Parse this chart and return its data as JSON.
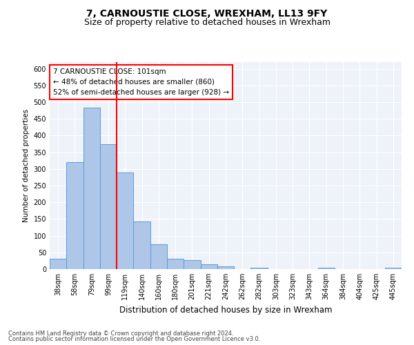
{
  "title1": "7, CARNOUSTIE CLOSE, WREXHAM, LL13 9FY",
  "title2": "Size of property relative to detached houses in Wrexham",
  "xlabel": "Distribution of detached houses by size in Wrexham",
  "ylabel": "Number of detached properties",
  "categories": [
    "38sqm",
    "58sqm",
    "79sqm",
    "99sqm",
    "119sqm",
    "140sqm",
    "160sqm",
    "180sqm",
    "201sqm",
    "221sqm",
    "242sqm",
    "262sqm",
    "282sqm",
    "303sqm",
    "323sqm",
    "343sqm",
    "364sqm",
    "384sqm",
    "404sqm",
    "425sqm",
    "445sqm"
  ],
  "values": [
    30,
    320,
    483,
    375,
    290,
    143,
    75,
    30,
    27,
    15,
    8,
    0,
    5,
    0,
    0,
    0,
    4,
    0,
    0,
    0,
    5
  ],
  "bar_color": "#aec6e8",
  "bar_edge_color": "#5b9bd5",
  "annotation_text": "7 CARNOUSTIE CLOSE: 101sqm\n← 48% of detached houses are smaller (860)\n52% of semi-detached houses are larger (928) →",
  "footer1": "Contains HM Land Registry data © Crown copyright and database right 2024.",
  "footer2": "Contains public sector information licensed under the Open Government Licence v3.0.",
  "ylim": [
    0,
    620
  ],
  "yticks": [
    0,
    50,
    100,
    150,
    200,
    250,
    300,
    350,
    400,
    450,
    500,
    550,
    600
  ],
  "bg_color": "#eef2f9",
  "grid_color": "white",
  "title1_fontsize": 10,
  "title2_fontsize": 9,
  "xlabel_fontsize": 8.5,
  "ylabel_fontsize": 7.5,
  "tick_fontsize": 7,
  "annotation_fontsize": 7.5,
  "footer_fontsize": 6
}
